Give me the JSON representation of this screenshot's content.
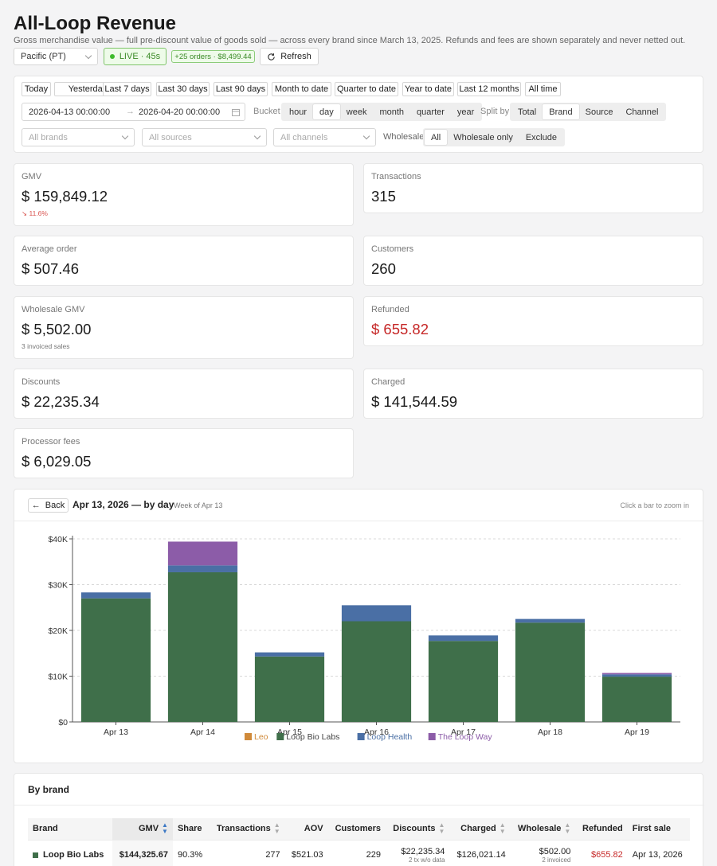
{
  "header": {
    "title": "All-Loop Revenue",
    "subtitle": "Gross merchandise value — full pre-discount value of goods sold — across every brand since March 13, 2025. Refunds and fees are shown separately and never netted out.",
    "timezone": "Pacific (PT)",
    "live_label": "LIVE · 45s",
    "new_orders": "+25 orders · $8,499.44",
    "refresh_label": "Refresh"
  },
  "filters": {
    "presets": [
      "Today",
      "Yesterday",
      "Last 7 days",
      "Last 30 days",
      "Last 90 days",
      "Month to date",
      "Quarter to date",
      "Year to date",
      "Last 12 months",
      "All time"
    ],
    "date_start": "2026-04-13 00:00:00",
    "date_end": "2026-04-20 00:00:00",
    "bucket_label": "Bucket",
    "bucket_options": [
      "hour",
      "day",
      "week",
      "month",
      "quarter",
      "year"
    ],
    "bucket_selected": "day",
    "split_label": "Split by",
    "split_options": [
      "Total",
      "Brand",
      "Source",
      "Channel"
    ],
    "split_selected": "Brand",
    "brands_placeholder": "All brands",
    "sources_placeholder": "All sources",
    "channels_placeholder": "All channels",
    "wholesale_label": "Wholesale",
    "wholesale_options": [
      "All",
      "Wholesale only",
      "Exclude"
    ],
    "wholesale_selected": "All"
  },
  "metrics": {
    "gmv": {
      "label": "GMV",
      "value": "$ 159,849.12",
      "delta": "11.6%"
    },
    "transactions": {
      "label": "Transactions",
      "value": "315"
    },
    "aov": {
      "label": "Average order",
      "value": "$ 507.46"
    },
    "customers": {
      "label": "Customers",
      "value": "260"
    },
    "wholesale": {
      "label": "Wholesale GMV",
      "value": "$ 5,502.00",
      "sub": "3 invoiced sales"
    },
    "refunded": {
      "label": "Refunded",
      "value": "$ 655.82"
    },
    "discounts": {
      "label": "Discounts",
      "value": "$ 22,235.34"
    },
    "charged": {
      "label": "Charged",
      "value": "$ 141,544.59"
    },
    "fees": {
      "label": "Processor fees",
      "value": "$ 6,029.05"
    }
  },
  "chart_panel": {
    "back_label": "Back",
    "title": "Apr 13, 2026 — by day",
    "subtitle": "Week of Apr 13",
    "hint": "Click a bar to zoom in"
  },
  "chart_data": {
    "type": "bar",
    "stacked": true,
    "categories": [
      "Apr 13",
      "Apr 14",
      "Apr 15",
      "Apr 16",
      "Apr 17",
      "Apr 18",
      "Apr 19"
    ],
    "series": [
      {
        "name": "Leo",
        "color": "#d08a3a",
        "values": [
          0,
          0,
          0,
          0,
          0,
          0,
          0
        ]
      },
      {
        "name": "Loop Bio Labs",
        "color": "#3f6f4a",
        "values": [
          27000,
          32700,
          14300,
          22000,
          17700,
          21700,
          9900
        ]
      },
      {
        "name": "Loop Health",
        "color": "#4a6fa5",
        "values": [
          1300,
          1500,
          900,
          3500,
          1200,
          800,
          500
        ]
      },
      {
        "name": "The Loop Way",
        "color": "#8c5ca8",
        "values": [
          0,
          5200,
          0,
          0,
          0,
          0,
          300
        ]
      }
    ],
    "y_ticks": [
      "$0",
      "$10K",
      "$20K",
      "$30K",
      "$40K"
    ],
    "ylim": [
      0,
      40000
    ],
    "grid": true,
    "legend_position": "bottom"
  },
  "table": {
    "title": "By brand",
    "columns": [
      "Brand",
      "GMV",
      "Share",
      "Transactions",
      "AOV",
      "Customers",
      "Discounts",
      "Charged",
      "Wholesale",
      "Refunded",
      "First sale"
    ],
    "rows": [
      {
        "color": "#3f6f4a",
        "brand": "Loop Bio Labs",
        "gmv": "$144,325.67",
        "share": "90.3%",
        "transactions": "277",
        "aov": "$521.03",
        "customers": "229",
        "discounts": "$22,235.34",
        "discounts_note": "2 tx w/o data",
        "charged": "$126,021.14",
        "wholesale": "$502.00",
        "wholesale_note": "2 invoiced",
        "refunded": "$655.82",
        "first_sale": "Apr 13, 2026"
      }
    ]
  }
}
